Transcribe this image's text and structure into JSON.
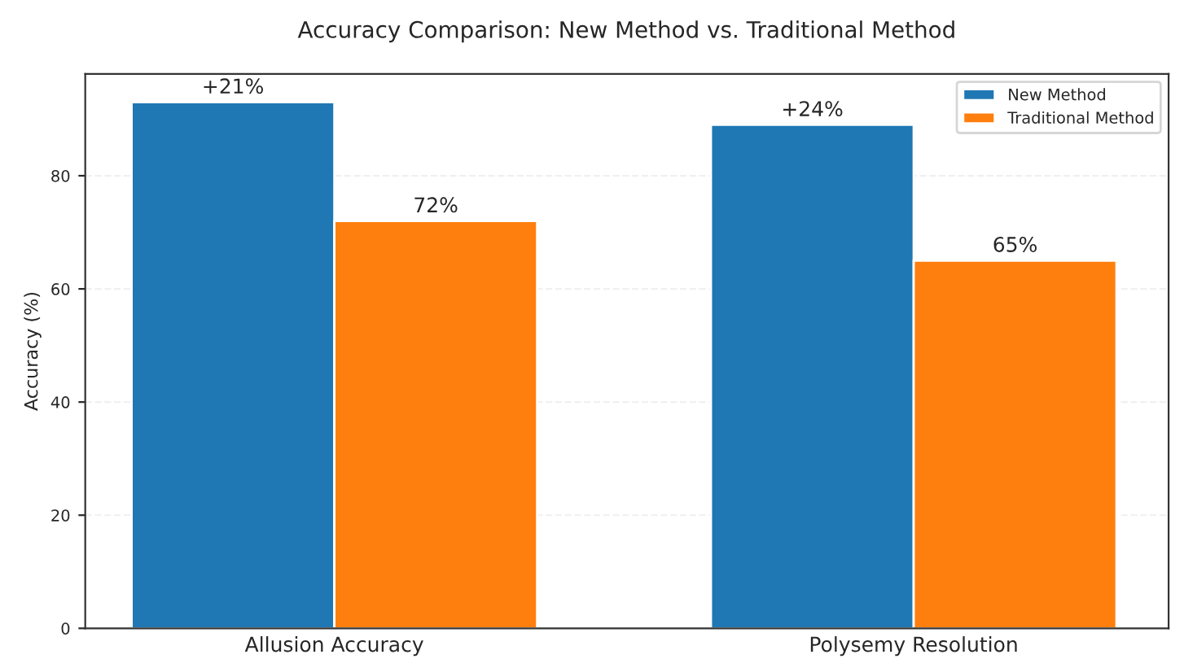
{
  "chart_data": {
    "type": "bar",
    "title": "Accuracy Comparison: New Method vs. Traditional Method",
    "ylabel": "Accuracy (%)",
    "categories": [
      "Allusion Accuracy",
      "Polysemy Resolution"
    ],
    "series": [
      {
        "name": "New Method",
        "color": "#1f77b4",
        "values": [
          93,
          89
        ]
      },
      {
        "name": "Traditional Method",
        "color": "#ff7f0e",
        "values": [
          72,
          65
        ],
        "value_labels": [
          "72%",
          "65%"
        ]
      }
    ],
    "annotations": [
      "+21%",
      "+24%"
    ],
    "ylim": [
      0,
      98
    ],
    "yticks": [
      0,
      20,
      40,
      60,
      80
    ],
    "grid": "y",
    "legend": "top right"
  }
}
